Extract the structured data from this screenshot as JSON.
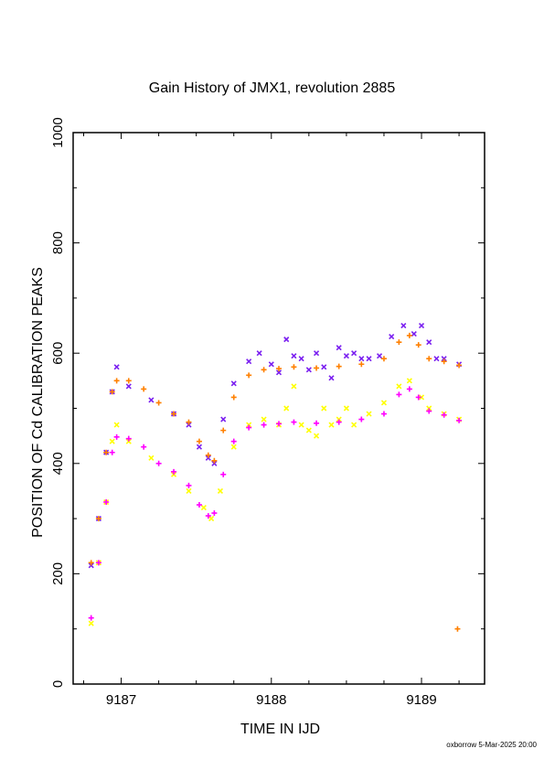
{
  "chart_data": {
    "type": "scatter",
    "title": "Gain History of JMX1, revolution 2885",
    "xlabel": "TIME IN IJD",
    "ylabel": "POSITION OF Cd CALIBRATION PEAKS",
    "xlim": [
      9186.68,
      9189.42
    ],
    "ylim": [
      0,
      1000
    ],
    "xticks": [
      9187,
      9188,
      9189
    ],
    "yticks": [
      0,
      200,
      400,
      600,
      800,
      1000
    ],
    "grid": false,
    "legend": "none",
    "series": [
      {
        "color": "#7a1ff0",
        "marker": "x",
        "points": [
          [
            9186.8,
            215
          ],
          [
            9186.85,
            300
          ],
          [
            9186.9,
            420
          ],
          [
            9186.94,
            530
          ],
          [
            9186.97,
            575
          ],
          [
            9187.05,
            540
          ],
          [
            9187.2,
            515
          ],
          [
            9187.35,
            490
          ],
          [
            9187.45,
            470
          ],
          [
            9187.52,
            430
          ],
          [
            9187.58,
            410
          ],
          [
            9187.62,
            400
          ],
          [
            9187.68,
            480
          ],
          [
            9187.75,
            545
          ],
          [
            9187.85,
            585
          ],
          [
            9187.92,
            600
          ],
          [
            9188.0,
            580
          ],
          [
            9188.05,
            565
          ],
          [
            9188.1,
            625
          ],
          [
            9188.15,
            595
          ],
          [
            9188.2,
            590
          ],
          [
            9188.25,
            570
          ],
          [
            9188.3,
            600
          ],
          [
            9188.35,
            575
          ],
          [
            9188.4,
            555
          ],
          [
            9188.45,
            610
          ],
          [
            9188.5,
            595
          ],
          [
            9188.55,
            600
          ],
          [
            9188.6,
            590
          ],
          [
            9188.65,
            590
          ],
          [
            9188.72,
            595
          ],
          [
            9188.8,
            630
          ],
          [
            9188.88,
            650
          ],
          [
            9188.95,
            635
          ],
          [
            9189.0,
            650
          ],
          [
            9189.05,
            620
          ],
          [
            9189.1,
            590
          ],
          [
            9189.15,
            590
          ],
          [
            9189.25,
            580
          ]
        ]
      },
      {
        "color": "#ff8000",
        "marker": "+",
        "points": [
          [
            9186.8,
            220
          ],
          [
            9186.85,
            300
          ],
          [
            9186.9,
            420
          ],
          [
            9186.94,
            530
          ],
          [
            9186.97,
            550
          ],
          [
            9187.05,
            550
          ],
          [
            9187.15,
            535
          ],
          [
            9187.25,
            510
          ],
          [
            9187.35,
            490
          ],
          [
            9187.45,
            475
          ],
          [
            9187.52,
            440
          ],
          [
            9187.58,
            415
          ],
          [
            9187.62,
            405
          ],
          [
            9187.68,
            460
          ],
          [
            9187.75,
            520
          ],
          [
            9187.85,
            560
          ],
          [
            9187.95,
            570
          ],
          [
            9188.05,
            572
          ],
          [
            9188.15,
            575
          ],
          [
            9188.3,
            573
          ],
          [
            9188.45,
            576
          ],
          [
            9188.6,
            580
          ],
          [
            9188.75,
            590
          ],
          [
            9188.85,
            620
          ],
          [
            9188.92,
            632
          ],
          [
            9188.98,
            615
          ],
          [
            9189.05,
            590
          ],
          [
            9189.15,
            585
          ],
          [
            9189.25,
            578
          ],
          [
            9189.24,
            100
          ]
        ]
      },
      {
        "color": "#ffff00",
        "marker": "x",
        "points": [
          [
            9186.8,
            110
          ],
          [
            9186.85,
            220
          ],
          [
            9186.9,
            330
          ],
          [
            9186.94,
            440
          ],
          [
            9186.97,
            470
          ],
          [
            9187.05,
            440
          ],
          [
            9187.2,
            410
          ],
          [
            9187.35,
            380
          ],
          [
            9187.45,
            350
          ],
          [
            9187.55,
            320
          ],
          [
            9187.6,
            300
          ],
          [
            9187.66,
            350
          ],
          [
            9187.75,
            430
          ],
          [
            9187.85,
            470
          ],
          [
            9187.95,
            480
          ],
          [
            9188.05,
            470
          ],
          [
            9188.1,
            500
          ],
          [
            9188.15,
            540
          ],
          [
            9188.2,
            470
          ],
          [
            9188.25,
            460
          ],
          [
            9188.3,
            450
          ],
          [
            9188.35,
            500
          ],
          [
            9188.4,
            470
          ],
          [
            9188.45,
            480
          ],
          [
            9188.5,
            500
          ],
          [
            9188.55,
            470
          ],
          [
            9188.65,
            490
          ],
          [
            9188.75,
            510
          ],
          [
            9188.85,
            540
          ],
          [
            9188.92,
            550
          ],
          [
            9189.0,
            520
          ],
          [
            9189.05,
            500
          ],
          [
            9189.15,
            490
          ],
          [
            9189.25,
            480
          ]
        ]
      },
      {
        "color": "#ff00ff",
        "marker": "+",
        "points": [
          [
            9186.8,
            120
          ],
          [
            9186.85,
            220
          ],
          [
            9186.9,
            330
          ],
          [
            9186.94,
            420
          ],
          [
            9186.97,
            448
          ],
          [
            9187.05,
            445
          ],
          [
            9187.15,
            430
          ],
          [
            9187.25,
            400
          ],
          [
            9187.35,
            385
          ],
          [
            9187.45,
            360
          ],
          [
            9187.52,
            325
          ],
          [
            9187.58,
            305
          ],
          [
            9187.62,
            310
          ],
          [
            9187.68,
            380
          ],
          [
            9187.75,
            440
          ],
          [
            9187.85,
            465
          ],
          [
            9187.95,
            470
          ],
          [
            9188.05,
            472
          ],
          [
            9188.15,
            475
          ],
          [
            9188.3,
            473
          ],
          [
            9188.45,
            475
          ],
          [
            9188.6,
            480
          ],
          [
            9188.75,
            490
          ],
          [
            9188.85,
            525
          ],
          [
            9188.92,
            535
          ],
          [
            9188.98,
            520
          ],
          [
            9189.05,
            495
          ],
          [
            9189.15,
            488
          ],
          [
            9189.25,
            478
          ]
        ]
      }
    ]
  },
  "footer": "oxborrow  5-Mar-2025 20:00"
}
